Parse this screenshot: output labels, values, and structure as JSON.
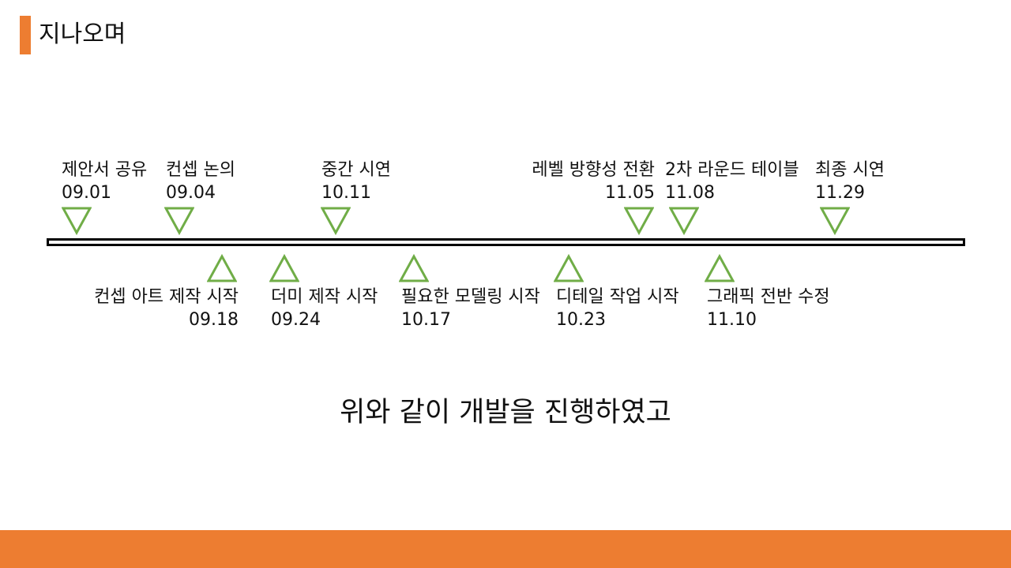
{
  "theme": {
    "accent": "#ED7D31",
    "marker": "#70AD47"
  },
  "slide": {
    "title": "지나오며",
    "summary": "위와 같이 개발을 진행하였고"
  },
  "timeline": {
    "upper_events": [
      {
        "label": "제안서 공유",
        "date": "09.01"
      },
      {
        "label": "컨셉 논의",
        "date": "09.04"
      },
      {
        "label": "중간 시연",
        "date": "10.11"
      },
      {
        "label": "레벨 방향성 전환",
        "date": "11.05"
      },
      {
        "label": "2차 라운드 테이블",
        "date": "11.08"
      },
      {
        "label": "최종 시연",
        "date": "11.29"
      }
    ],
    "lower_events": [
      {
        "label": "컨셉 아트 제작 시작",
        "date": "09.18"
      },
      {
        "label": "더미 제작 시작",
        "date": "09.24"
      },
      {
        "label": "필요한 모델링 시작",
        "date": "10.17"
      },
      {
        "label": "디테일 작업 시작",
        "date": "10.23"
      },
      {
        "label": "그래픽 전반 수정",
        "date": "11.10"
      }
    ]
  }
}
